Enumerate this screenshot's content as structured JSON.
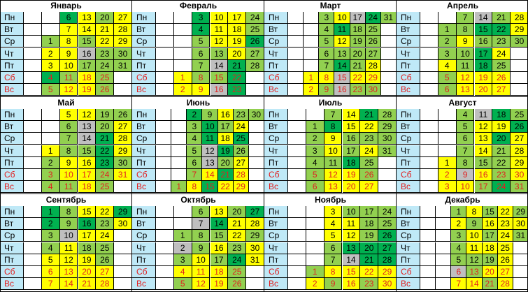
{
  "days": [
    "Пн",
    "Вт",
    "Ср",
    "Чт",
    "Пт",
    "Сб",
    "Вс"
  ],
  "months": [
    {
      "name": "Январь",
      "cells": [
        [
          "w",
          "w",
          "d:6",
          "y:13",
          "g:20",
          "y:27"
        ],
        [
          "w",
          "w",
          "y:7",
          "y:14",
          "y:21",
          "y:28"
        ],
        [
          "w",
          "g:1",
          "y:8",
          "g:15",
          "y:22",
          "y:29"
        ],
        [
          "w",
          "y:2",
          "y:9",
          "s:16",
          "g:23",
          "g:30"
        ],
        [
          "w",
          "y:3",
          "y:10",
          "g:17",
          "g:24",
          "g:31"
        ],
        [
          "w",
          "d:4",
          "g:11",
          "y:18",
          "g:25",
          "w"
        ],
        [
          "w",
          "g:5",
          "y:12",
          "y:19",
          "g:26",
          "w"
        ]
      ]
    },
    {
      "name": "Февраль",
      "cells": [
        [
          "w",
          "w",
          "d:3",
          "y:10",
          "y:17",
          "g:24"
        ],
        [
          "w",
          "w",
          "d:4",
          "y:11",
          "y:18",
          "g:25"
        ],
        [
          "w",
          "w",
          "g:5",
          "y:12",
          "y:19",
          "d:26"
        ],
        [
          "w",
          "w",
          "g:6",
          "g:13",
          "y:20",
          "g:27"
        ],
        [
          "w",
          "w",
          "g:7",
          "s:14",
          "d:21",
          "g:28"
        ],
        [
          "w",
          "y:1",
          "g:8",
          "g:15",
          "d:22",
          "w"
        ],
        [
          "w",
          "y:2",
          "y:9",
          "s:16",
          "d:23",
          "w"
        ]
      ]
    },
    {
      "name": "Март",
      "cells": [
        [
          "w",
          "w",
          "g:3",
          "y:10",
          "s:17",
          "d:24",
          "g:31"
        ],
        [
          "w",
          "w",
          "g:4",
          "d:11",
          "g:18",
          "g:25",
          "w"
        ],
        [
          "w",
          "w",
          "g:5",
          "y:12",
          "g:19",
          "g:26",
          "w"
        ],
        [
          "w",
          "w",
          "g:6",
          "g:13",
          "g:20",
          "g:27",
          "w"
        ],
        [
          "w",
          "w",
          "g:7",
          "d:14",
          "g:21",
          "y:28",
          "w"
        ],
        [
          "w",
          "y:1",
          "y:8",
          "s:15",
          "y:22",
          "y:29",
          "w"
        ],
        [
          "w",
          "y:2",
          "g:9",
          "s:16",
          "g:23",
          "g:30",
          "w"
        ]
      ]
    },
    {
      "name": "Апрель",
      "cells": [
        [
          "w",
          "w",
          "g:7",
          "s:14",
          "g:21",
          "y:28"
        ],
        [
          "w",
          "g:1",
          "g:8",
          "d:15",
          "d:22",
          "y:29"
        ],
        [
          "w",
          "g:2",
          "y:9",
          "g:16",
          "g:23",
          "g:30"
        ],
        [
          "w",
          "g:3",
          "g:10",
          "d:17",
          "y:24",
          "w"
        ],
        [
          "w",
          "y:4",
          "g:11",
          "d:18",
          "g:25",
          "w"
        ],
        [
          "w",
          "g:5",
          "y:12",
          "y:19",
          "y:26",
          "w"
        ],
        [
          "w",
          "g:6",
          "y:13",
          "y:20",
          "y:27",
          "w"
        ]
      ]
    },
    {
      "name": "Май",
      "cells": [
        [
          "w",
          "w",
          "y:5",
          "y:12",
          "g:19",
          "g:26"
        ],
        [
          "w",
          "w",
          "g:6",
          "s:13",
          "g:20",
          "y:27"
        ],
        [
          "w",
          "w",
          "g:7",
          "s:14",
          "d:21",
          "y:28"
        ],
        [
          "w",
          "y:1",
          "g:8",
          "g:15",
          "d:22",
          "y:29"
        ],
        [
          "w",
          "g:2",
          "y:9",
          "y:16",
          "d:23",
          "g:30"
        ],
        [
          "w",
          "g:3",
          "y:10",
          "y:17",
          "g:24",
          "y:31"
        ],
        [
          "w",
          "g:4",
          "g:11",
          "y:18",
          "g:25",
          "w"
        ]
      ]
    },
    {
      "name": "Июнь",
      "cells": [
        [
          "w",
          "w",
          "d:2",
          "g:9",
          "y:16",
          "g:23",
          "g:30"
        ],
        [
          "w",
          "w",
          "g:3",
          "d:10",
          "g:17",
          "y:24",
          "w"
        ],
        [
          "w",
          "w",
          "g:4",
          "d:11",
          "y:18",
          "d:25",
          "w"
        ],
        [
          "w",
          "w",
          "g:5",
          "s:12",
          "d:19",
          "g:26",
          "w"
        ],
        [
          "w",
          "w",
          "g:6",
          "s:13",
          "g:20",
          "y:27",
          "w"
        ],
        [
          "w",
          "w",
          "g:7",
          "y:14",
          "d:21",
          "y:28",
          "w"
        ],
        [
          "w",
          "g:1",
          "y:8",
          "d:15",
          "y:22",
          "y:29",
          "w"
        ]
      ]
    },
    {
      "name": "Июль",
      "cells": [
        [
          "w",
          "w",
          "g:7",
          "y:14",
          "d:21",
          "g:28"
        ],
        [
          "w",
          "g:1",
          "d:8",
          "y:15",
          "y:22",
          "g:29"
        ],
        [
          "w",
          "g:2",
          "y:9",
          "g:16",
          "g:23",
          "g:30"
        ],
        [
          "w",
          "g:3",
          "y:10",
          "g:17",
          "y:24",
          "g:31"
        ],
        [
          "w",
          "g:4",
          "g:11",
          "d:18",
          "g:25",
          "w"
        ],
        [
          "w",
          "g:5",
          "y:12",
          "y:19",
          "g:26",
          "w"
        ],
        [
          "w",
          "g:6",
          "y:13",
          "y:20",
          "y:27",
          "w"
        ]
      ]
    },
    {
      "name": "Август",
      "cells": [
        [
          "w",
          "w",
          "g:4",
          "s:11",
          "d:18",
          "g:25"
        ],
        [
          "w",
          "w",
          "g:5",
          "y:12",
          "y:19",
          "d:26"
        ],
        [
          "w",
          "w",
          "g:6",
          "y:13",
          "d:20",
          "y:27"
        ],
        [
          "w",
          "w",
          "g:7",
          "y:14",
          "g:21",
          "y:28"
        ],
        [
          "w",
          "y:1",
          "g:8",
          "g:15",
          "g:22",
          "y:29"
        ],
        [
          "w",
          "y:2",
          "s:9",
          "y:16",
          "g:23",
          "y:30"
        ],
        [
          "w",
          "y:3",
          "y:10",
          "g:17",
          "d:24",
          "g:31"
        ]
      ]
    },
    {
      "name": "Сентябрь",
      "cells": [
        [
          "w",
          "d:1",
          "g:8",
          "y:15",
          "y:22",
          "d:29"
        ],
        [
          "w",
          "d:2",
          "g:9",
          "d:16",
          "g:23",
          "y:30"
        ],
        [
          "w",
          "g:3",
          "s:10",
          "y:17",
          "y:24",
          "w"
        ],
        [
          "w",
          "g:4",
          "y:11",
          "g:18",
          "g:25",
          "w"
        ],
        [
          "w",
          "y:5",
          "y:12",
          "y:19",
          "g:26",
          "w"
        ],
        [
          "w",
          "y:6",
          "y:13",
          "y:20",
          "y:27",
          "w"
        ],
        [
          "w",
          "y:7",
          "y:14",
          "y:21",
          "y:28",
          "w"
        ]
      ]
    },
    {
      "name": "Октябрь",
      "cells": [
        [
          "w",
          "w",
          "g:6",
          "y:13",
          "g:20",
          "d:27"
        ],
        [
          "w",
          "w",
          "s:7",
          "d:14",
          "y:21",
          "y:28"
        ],
        [
          "w",
          "g:1",
          "g:8",
          "g:15",
          "y:22",
          "g:29"
        ],
        [
          "w",
          "s:2",
          "g:9",
          "y:16",
          "g:23",
          "y:30"
        ],
        [
          "w",
          "g:3",
          "y:10",
          "g:17",
          "d:24",
          "y:31"
        ],
        [
          "w",
          "y:4",
          "y:11",
          "y:18",
          "g:25",
          "w"
        ],
        [
          "w",
          "g:5",
          "y:12",
          "y:19",
          "g:26",
          "w"
        ]
      ]
    },
    {
      "name": "Ноябрь",
      "cells": [
        [
          "w",
          "w",
          "y:3",
          "g:10",
          "g:17",
          "g:24"
        ],
        [
          "w",
          "w",
          "y:4",
          "y:11",
          "g:18",
          "g:25"
        ],
        [
          "w",
          "w",
          "y:5",
          "y:12",
          "g:19",
          "d:26"
        ],
        [
          "w",
          "w",
          "g:6",
          "d:13",
          "d:20",
          "d:27"
        ],
        [
          "w",
          "w",
          "g:7",
          "s:14",
          "d:21",
          "d:28"
        ],
        [
          "w",
          "g:1",
          "y:8",
          "y:15",
          "y:22",
          "y:29"
        ],
        [
          "w",
          "y:2",
          "g:9",
          "y:16",
          "g:23",
          "y:30"
        ]
      ]
    },
    {
      "name": "Декабрь",
      "cells": [
        [
          "w",
          "w",
          "g:1",
          "y:8",
          "g:15",
          "y:22",
          "g:29"
        ],
        [
          "w",
          "w",
          "y:2",
          "g:9",
          "y:16",
          "y:23",
          "y:30"
        ],
        [
          "w",
          "w",
          "g:3",
          "y:10",
          "g:17",
          "y:24",
          "g:31"
        ],
        [
          "w",
          "w",
          "g:4",
          "y:11",
          "y:18",
          "y:25",
          "w"
        ],
        [
          "w",
          "w",
          "g:5",
          "g:12",
          "g:19",
          "y:26",
          "w"
        ],
        [
          "w",
          "w",
          "s:6",
          "g:13",
          "y:20",
          "y:27",
          "w"
        ],
        [
          "w",
          "w",
          "y:7",
          "y:14",
          "g:21",
          "y:28",
          "w"
        ]
      ]
    }
  ]
}
